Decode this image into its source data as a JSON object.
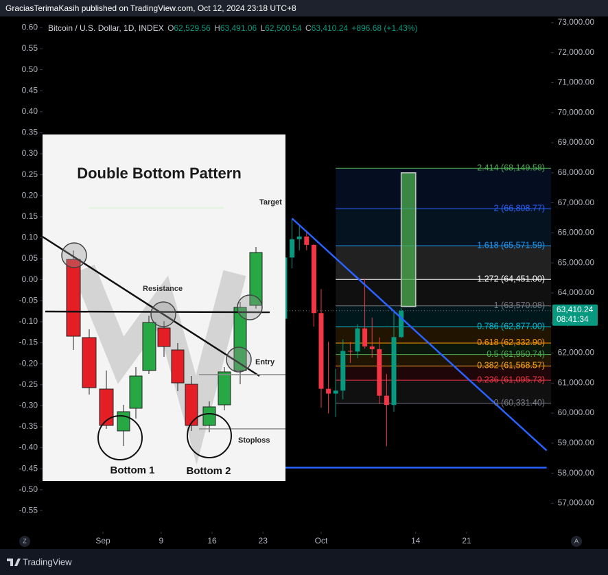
{
  "header": {
    "title": "GraciasTerimaKasih published on TradingView.com, Oct 12, 2024 23:18 UTC+8"
  },
  "legend": {
    "symbol": "Bitcoin / U.S. Dollar, 1D, INDEX",
    "ohlc": [
      {
        "key": "O",
        "value": "62,529.56"
      },
      {
        "key": "H",
        "value": "63,491.06"
      },
      {
        "key": "L",
        "value": "62,500.54"
      },
      {
        "key": "C",
        "value": "63,410.24"
      }
    ],
    "change": "+896.68 (+1.43%)"
  },
  "chart_data": {
    "type": "candlestick",
    "categories": [
      "Sep",
      null,
      null,
      null,
      null,
      null,
      null,
      null,
      "9",
      null,
      null,
      null,
      null,
      null,
      null,
      "16",
      null,
      null,
      null,
      null,
      null,
      null,
      "23",
      null,
      null,
      null,
      null,
      null,
      null,
      null,
      "Oct",
      null,
      null,
      null,
      null,
      null,
      null,
      null,
      null,
      null,
      null,
      null,
      null,
      "14",
      null,
      null,
      null,
      null,
      null,
      null,
      "21",
      null,
      null,
      null,
      null,
      null,
      null,
      null,
      null,
      null,
      null,
      null
    ],
    "open": [
      null,
      null,
      null,
      null,
      null,
      null,
      null,
      null,
      null,
      null,
      null,
      null,
      null,
      null,
      null,
      null,
      null,
      null,
      null,
      null,
      null,
      null,
      null,
      null,
      null,
      63140,
      65180,
      65790,
      65880,
      65600,
      63330,
      60810,
      60650,
      60750,
      62070,
      62050,
      62820,
      62220,
      62130,
      60580,
      60270,
      62529.56,
      null,
      null,
      null,
      null,
      null,
      null,
      null,
      null,
      null,
      null,
      null,
      null,
      null,
      null,
      null,
      null,
      null,
      null,
      null,
      null
    ],
    "high": [
      null,
      null,
      null,
      null,
      null,
      null,
      null,
      null,
      null,
      null,
      null,
      null,
      null,
      null,
      null,
      null,
      null,
      null,
      null,
      null,
      null,
      null,
      null,
      null,
      null,
      65800,
      66480,
      66260,
      66080,
      65620,
      64130,
      62380,
      61480,
      62460,
      62370,
      62960,
      64480,
      63180,
      62520,
      61300,
      63400,
      63491.06,
      null,
      null,
      null,
      null,
      null,
      null,
      null,
      null,
      null,
      null,
      null,
      null,
      null,
      null,
      null,
      null,
      null,
      null,
      null,
      null
    ],
    "low": [
      null,
      null,
      null,
      null,
      null,
      null,
      null,
      null,
      null,
      null,
      null,
      null,
      null,
      null,
      null,
      null,
      null,
      null,
      null,
      null,
      null,
      null,
      null,
      null,
      null,
      62670,
      64820,
      65420,
      65420,
      62880,
      60180,
      59990,
      59870,
      60460,
      61670,
      61830,
      62150,
      61850,
      60300,
      58900,
      60050,
      62500.54,
      null,
      null,
      null,
      null,
      null,
      null,
      null,
      null,
      null,
      null,
      null,
      null,
      null,
      null,
      null,
      null,
      null,
      null,
      null,
      null
    ],
    "close": [
      null,
      null,
      null,
      null,
      null,
      null,
      null,
      null,
      null,
      null,
      null,
      null,
      null,
      null,
      null,
      null,
      null,
      null,
      null,
      null,
      null,
      null,
      null,
      null,
      null,
      65180,
      65790,
      65880,
      65600,
      63330,
      60810,
      60650,
      60750,
      62070,
      62050,
      62820,
      62220,
      62130,
      60580,
      60270,
      62530,
      63410.24,
      null,
      null,
      null,
      null,
      null,
      null,
      null,
      null,
      null,
      null,
      null,
      null,
      null,
      null,
      null,
      null,
      null,
      null,
      null,
      null
    ],
    "up_color": "#089981",
    "down_color": "#f23645",
    "ylim": [
      56050,
      73250
    ],
    "yticks": [
      {
        "value": 57000,
        "label": "57,000.00"
      },
      {
        "value": 58000,
        "label": "58,000.00"
      },
      {
        "value": 59000,
        "label": "59,000.00"
      },
      {
        "value": 60000,
        "label": "60,000.00"
      },
      {
        "value": 61000,
        "label": "61,000.00"
      },
      {
        "value": 62000,
        "label": "62,000.00"
      },
      {
        "value": 63000,
        "label": "63,000.00"
      },
      {
        "value": 64000,
        "label": "64,000.00"
      },
      {
        "value": 65000,
        "label": "65,000.00"
      },
      {
        "value": 66000,
        "label": "66,000.00"
      },
      {
        "value": 67000,
        "label": "67,000.00"
      },
      {
        "value": 68000,
        "label": "68,000.00"
      },
      {
        "value": 69000,
        "label": "69,000.00"
      },
      {
        "value": 70000,
        "label": "70,000.00"
      },
      {
        "value": 71000,
        "label": "71,000.00"
      },
      {
        "value": 72000,
        "label": "72,000.00"
      },
      {
        "value": 73000,
        "label": "73,000.00"
      }
    ],
    "y2lim": [
      -0.6,
      0.63
    ],
    "y2ticks": [
      {
        "value": 0.6,
        "label": "0.60"
      },
      0.55,
      {
        "value": 0.5,
        "label": "0.50"
      },
      0.45,
      {
        "value": 0.4,
        "label": "0.40"
      },
      0.35,
      {
        "value": 0.3,
        "label": "0.30"
      },
      0.25,
      {
        "value": 0.2,
        "label": "0.20"
      },
      0.15,
      {
        "value": 0.1,
        "label": "0.10"
      },
      0.05,
      {
        "value": 0,
        "label": "0.00"
      },
      -0.05,
      {
        "value": -0.1,
        "label": "-0.10"
      },
      -0.15,
      {
        "value": -0.2,
        "label": "-0.20"
      },
      -0.25,
      {
        "value": -0.3,
        "label": "-0.30"
      },
      -0.35,
      {
        "value": -0.4,
        "label": "-0.40"
      },
      -0.45,
      {
        "value": -0.5,
        "label": "-0.50"
      },
      -0.55
    ],
    "fib": {
      "start": 32,
      "levels": [
        {
          "value": 68149.58,
          "label": "2.414 (68,149.58)",
          "color": "#4caf50"
        },
        {
          "value": 66808.77,
          "label": "2 (66,808.77)",
          "color": "#2962ff"
        },
        {
          "value": 65571.59,
          "label": "1.618 (65,571.59)",
          "color": "#2196f3"
        },
        {
          "value": 64451.0,
          "label": "1.272 (64,451.00)",
          "color": "#ffffff"
        },
        {
          "value": 63570.08,
          "label": "1 (63,570.08)",
          "color": "#787b86"
        },
        {
          "value": 62877.0,
          "label": "0.786 (62,877.00)",
          "color": "#00bcd4"
        },
        {
          "value": 62332.9,
          "label": "0.618 (62,332.90)",
          "color": "#ff9800"
        },
        {
          "value": 61950.74,
          "label": "0.5 (61,950.74)",
          "color": "#4caf50"
        },
        {
          "value": 61568.57,
          "label": "0.382 (61,568.57)",
          "color": "#f7a21b"
        },
        {
          "value": 61095.73,
          "label": "0.236 (61,095.73)",
          "color": "#f23645"
        },
        {
          "value": 60331.4,
          "label": "0 (60,331.40)",
          "color": "#787b86"
        }
      ]
    },
    "target_box": {
      "start": 41,
      "end": 43,
      "top": 68000,
      "bottom": 63550,
      "color": "#4caf50"
    },
    "trendlines": [
      {
        "x": [
          26,
          61
        ],
        "y": [
          66480,
          58755
        ],
        "color": "#2962ff"
      },
      {
        "x": [
          24,
          61
        ],
        "y": [
          58185,
          58185
        ],
        "color": "#2962ff"
      }
    ],
    "price_label": {
      "value": 63410.24,
      "label": "63,410.24",
      "countdown": "08:41:34"
    }
  },
  "inset": {
    "title": "Double Bottom Pattern",
    "target": "Target",
    "resistance": "Resistance",
    "entry": "Entry",
    "stoploss": "Stoploss",
    "bottom1": "Bottom 1",
    "bottom2": "Bottom 2"
  },
  "footer": {
    "brand": "TradingView",
    "left_button": "Z",
    "right_button": "A"
  }
}
